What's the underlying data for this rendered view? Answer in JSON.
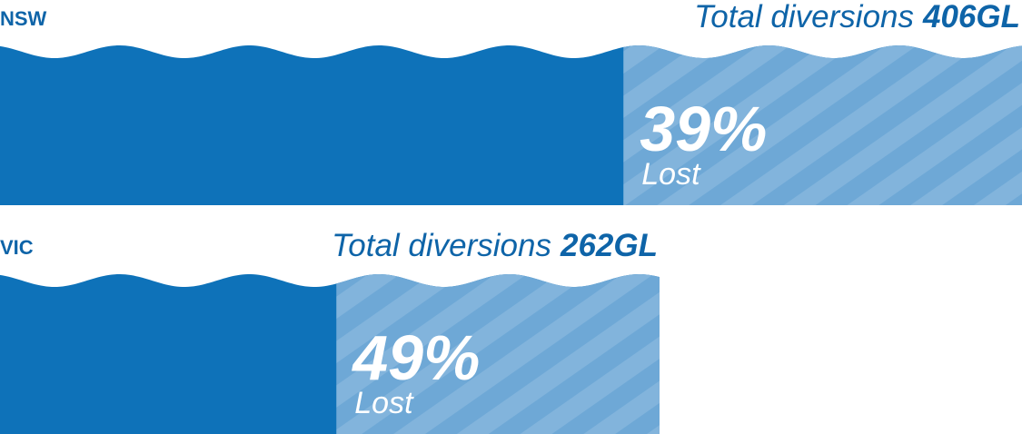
{
  "chart_data": {
    "type": "bar",
    "orientation": "horizontal",
    "categories": [
      "NSW",
      "VIC"
    ],
    "totals": {
      "label": "Total diversions",
      "values": [
        406,
        262
      ],
      "value_labels": [
        "406GL",
        "262GL"
      ],
      "color": "#0e72b9"
    },
    "lost": {
      "name": "Lost",
      "values": [
        39,
        49
      ],
      "value_labels": [
        "39%",
        "49%"
      ],
      "color": "#6ea8d6"
    }
  }
}
